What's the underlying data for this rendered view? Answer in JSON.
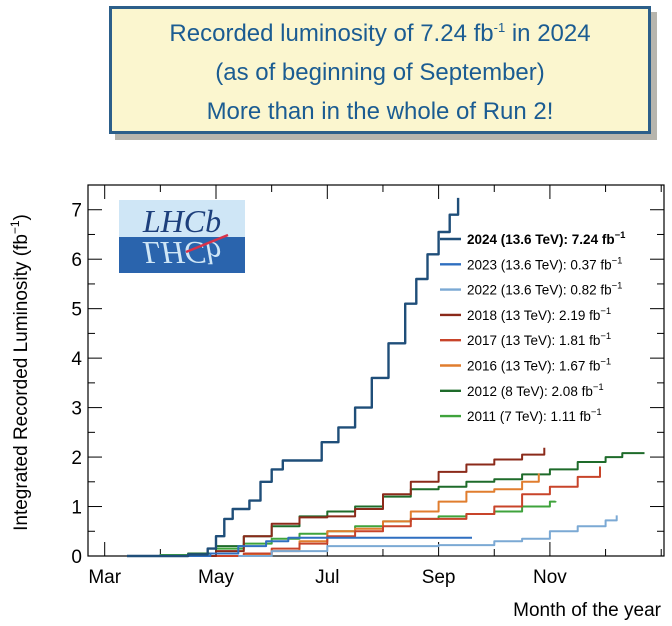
{
  "banner": {
    "line1_pre": "Recorded luminosity of 7.24 fb",
    "line1_sup": "-1",
    "line1_post": " in 2024",
    "line2": "(as of beginning of September)",
    "line3": "More than in the whole of Run 2!"
  },
  "logo": {
    "text": "LHCb",
    "colors": {
      "top": "#cfe6f6",
      "bottom": "#2a64ad",
      "text": "#1d3f7c",
      "slash": "#d8324a"
    }
  },
  "chart_data": {
    "type": "line",
    "xlabel": "Month of the year",
    "ylabel": "Integrated Recorded Luminosity (fb",
    "ylabel_sup": "−1",
    "ylabel_close": ")",
    "x_unit": "month (1 = Jan 1)",
    "xlim": [
      2.7,
      13.05
    ],
    "ylim": [
      0,
      7.5
    ],
    "x_ticks": [
      {
        "label": "Mar",
        "x": 3
      },
      {
        "label": "May",
        "x": 5
      },
      {
        "label": "Jul",
        "x": 7
      },
      {
        "label": "Sep",
        "x": 9
      },
      {
        "label": "Nov",
        "x": 11
      }
    ],
    "y_ticks": [
      0,
      1,
      2,
      3,
      4,
      5,
      6,
      7
    ],
    "legend_position": "top-right",
    "series": [
      {
        "name": "2024 (13.6 TeV): 7.24 fb",
        "bold": true,
        "color": "#1f4e79",
        "points": [
          [
            3.4,
            0
          ],
          [
            4.5,
            0.03
          ],
          [
            4.85,
            0.15
          ],
          [
            5.0,
            0.4
          ],
          [
            5.15,
            0.75
          ],
          [
            5.3,
            0.95
          ],
          [
            5.5,
            0.95
          ],
          [
            5.6,
            1.12
          ],
          [
            5.8,
            1.5
          ],
          [
            6.0,
            1.75
          ],
          [
            6.2,
            1.93
          ],
          [
            6.7,
            1.93
          ],
          [
            6.9,
            2.3
          ],
          [
            7.2,
            2.6
          ],
          [
            7.5,
            3.0
          ],
          [
            7.8,
            3.6
          ],
          [
            8.1,
            4.3
          ],
          [
            8.4,
            5.1
          ],
          [
            8.6,
            5.6
          ],
          [
            8.8,
            6.1
          ],
          [
            9.0,
            6.55
          ],
          [
            9.2,
            6.9
          ],
          [
            9.35,
            7.24
          ]
        ]
      },
      {
        "name": "2023 (13.6 TeV): 0.37 fb",
        "bold": false,
        "color": "#2f6fc0",
        "points": [
          [
            4.4,
            0
          ],
          [
            4.9,
            0.05
          ],
          [
            5.4,
            0.2
          ],
          [
            5.9,
            0.3
          ],
          [
            6.3,
            0.37
          ],
          [
            9.6,
            0.37
          ]
        ]
      },
      {
        "name": "2022 (13.6 TeV): 0.82 fb",
        "bold": false,
        "color": "#7ba9d4",
        "points": [
          [
            5.4,
            0
          ],
          [
            6.0,
            0.1
          ],
          [
            7.0,
            0.2
          ],
          [
            8.0,
            0.2
          ],
          [
            9.0,
            0.22
          ],
          [
            10.0,
            0.3
          ],
          [
            10.5,
            0.35
          ],
          [
            11.0,
            0.5
          ],
          [
            11.5,
            0.6
          ],
          [
            12.0,
            0.72
          ],
          [
            12.2,
            0.82
          ]
        ]
      },
      {
        "name": "2018 (13 TeV): 2.19 fb",
        "bold": false,
        "color": "#8b2a1a",
        "points": [
          [
            4.5,
            0
          ],
          [
            5.0,
            0.1
          ],
          [
            5.5,
            0.4
          ],
          [
            6.0,
            0.65
          ],
          [
            6.5,
            0.78
          ],
          [
            7.0,
            0.8
          ],
          [
            7.5,
            0.95
          ],
          [
            8.0,
            1.25
          ],
          [
            8.5,
            1.5
          ],
          [
            9.0,
            1.7
          ],
          [
            9.5,
            1.85
          ],
          [
            10.0,
            1.95
          ],
          [
            10.5,
            2.05
          ],
          [
            10.9,
            2.19
          ]
        ]
      },
      {
        "name": "2017 (13 TeV): 1.81 fb",
        "bold": false,
        "color": "#c8442a",
        "points": [
          [
            5.0,
            0
          ],
          [
            5.5,
            0.05
          ],
          [
            6.0,
            0.15
          ],
          [
            6.5,
            0.25
          ],
          [
            7.0,
            0.4
          ],
          [
            7.5,
            0.5
          ],
          [
            8.0,
            0.6
          ],
          [
            8.5,
            0.75
          ],
          [
            9.0,
            0.75
          ],
          [
            9.5,
            0.85
          ],
          [
            10.0,
            1.0
          ],
          [
            10.5,
            1.25
          ],
          [
            11.0,
            1.4
          ],
          [
            11.5,
            1.6
          ],
          [
            11.9,
            1.81
          ]
        ]
      },
      {
        "name": "2016 (13 TeV): 1.67 fb",
        "bold": false,
        "color": "#e07d2e",
        "points": [
          [
            5.1,
            0
          ],
          [
            5.5,
            0.02
          ],
          [
            6.0,
            0.1
          ],
          [
            6.5,
            0.3
          ],
          [
            7.0,
            0.5
          ],
          [
            7.5,
            0.55
          ],
          [
            8.0,
            0.7
          ],
          [
            8.5,
            0.9
          ],
          [
            9.0,
            1.1
          ],
          [
            9.5,
            1.3
          ],
          [
            10.0,
            1.35
          ],
          [
            10.5,
            1.5
          ],
          [
            10.8,
            1.67
          ]
        ]
      },
      {
        "name": "2012 (8 TeV): 2.08 fb",
        "bold": false,
        "color": "#1e6b2a",
        "points": [
          [
            4.0,
            0
          ],
          [
            4.5,
            0.05
          ],
          [
            5.0,
            0.2
          ],
          [
            5.5,
            0.4
          ],
          [
            6.0,
            0.6
          ],
          [
            6.5,
            0.8
          ],
          [
            7.0,
            0.9
          ],
          [
            7.5,
            1.0
          ],
          [
            8.0,
            1.2
          ],
          [
            8.5,
            1.35
          ],
          [
            9.0,
            1.4
          ],
          [
            9.5,
            1.5
          ],
          [
            10.0,
            1.55
          ],
          [
            10.5,
            1.65
          ],
          [
            11.0,
            1.75
          ],
          [
            11.5,
            1.9
          ],
          [
            12.0,
            2.0
          ],
          [
            12.3,
            2.08
          ],
          [
            12.7,
            2.08
          ]
        ]
      },
      {
        "name": "2011 (7 TeV):  1.11 fb",
        "bold": false,
        "color": "#3fa33c",
        "points": [
          [
            3.6,
            0
          ],
          [
            4.0,
            0.02
          ],
          [
            4.5,
            0.05
          ],
          [
            5.0,
            0.15
          ],
          [
            5.5,
            0.25
          ],
          [
            6.0,
            0.35
          ],
          [
            6.5,
            0.45
          ],
          [
            7.0,
            0.5
          ],
          [
            7.5,
            0.6
          ],
          [
            8.0,
            0.7
          ],
          [
            8.5,
            0.75
          ],
          [
            9.0,
            0.8
          ],
          [
            9.5,
            0.85
          ],
          [
            10.0,
            0.9
          ],
          [
            10.5,
            1.0
          ],
          [
            11.0,
            1.1
          ],
          [
            11.1,
            1.11
          ]
        ]
      }
    ]
  }
}
